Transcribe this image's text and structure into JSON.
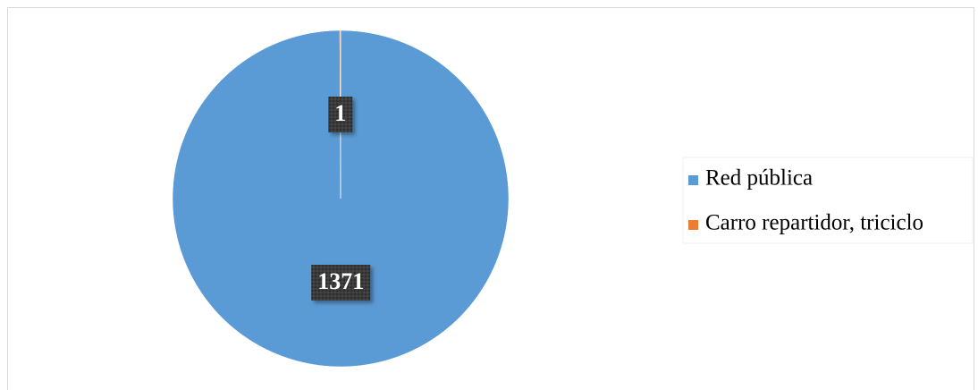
{
  "chart_data": {
    "type": "pie",
    "categories": [
      "Red pública",
      "Carro repartidor, triciclo"
    ],
    "values": [
      1371,
      1
    ],
    "colors": [
      "#5b9bd5",
      "#ed7d31"
    ],
    "legend": "right"
  }
}
